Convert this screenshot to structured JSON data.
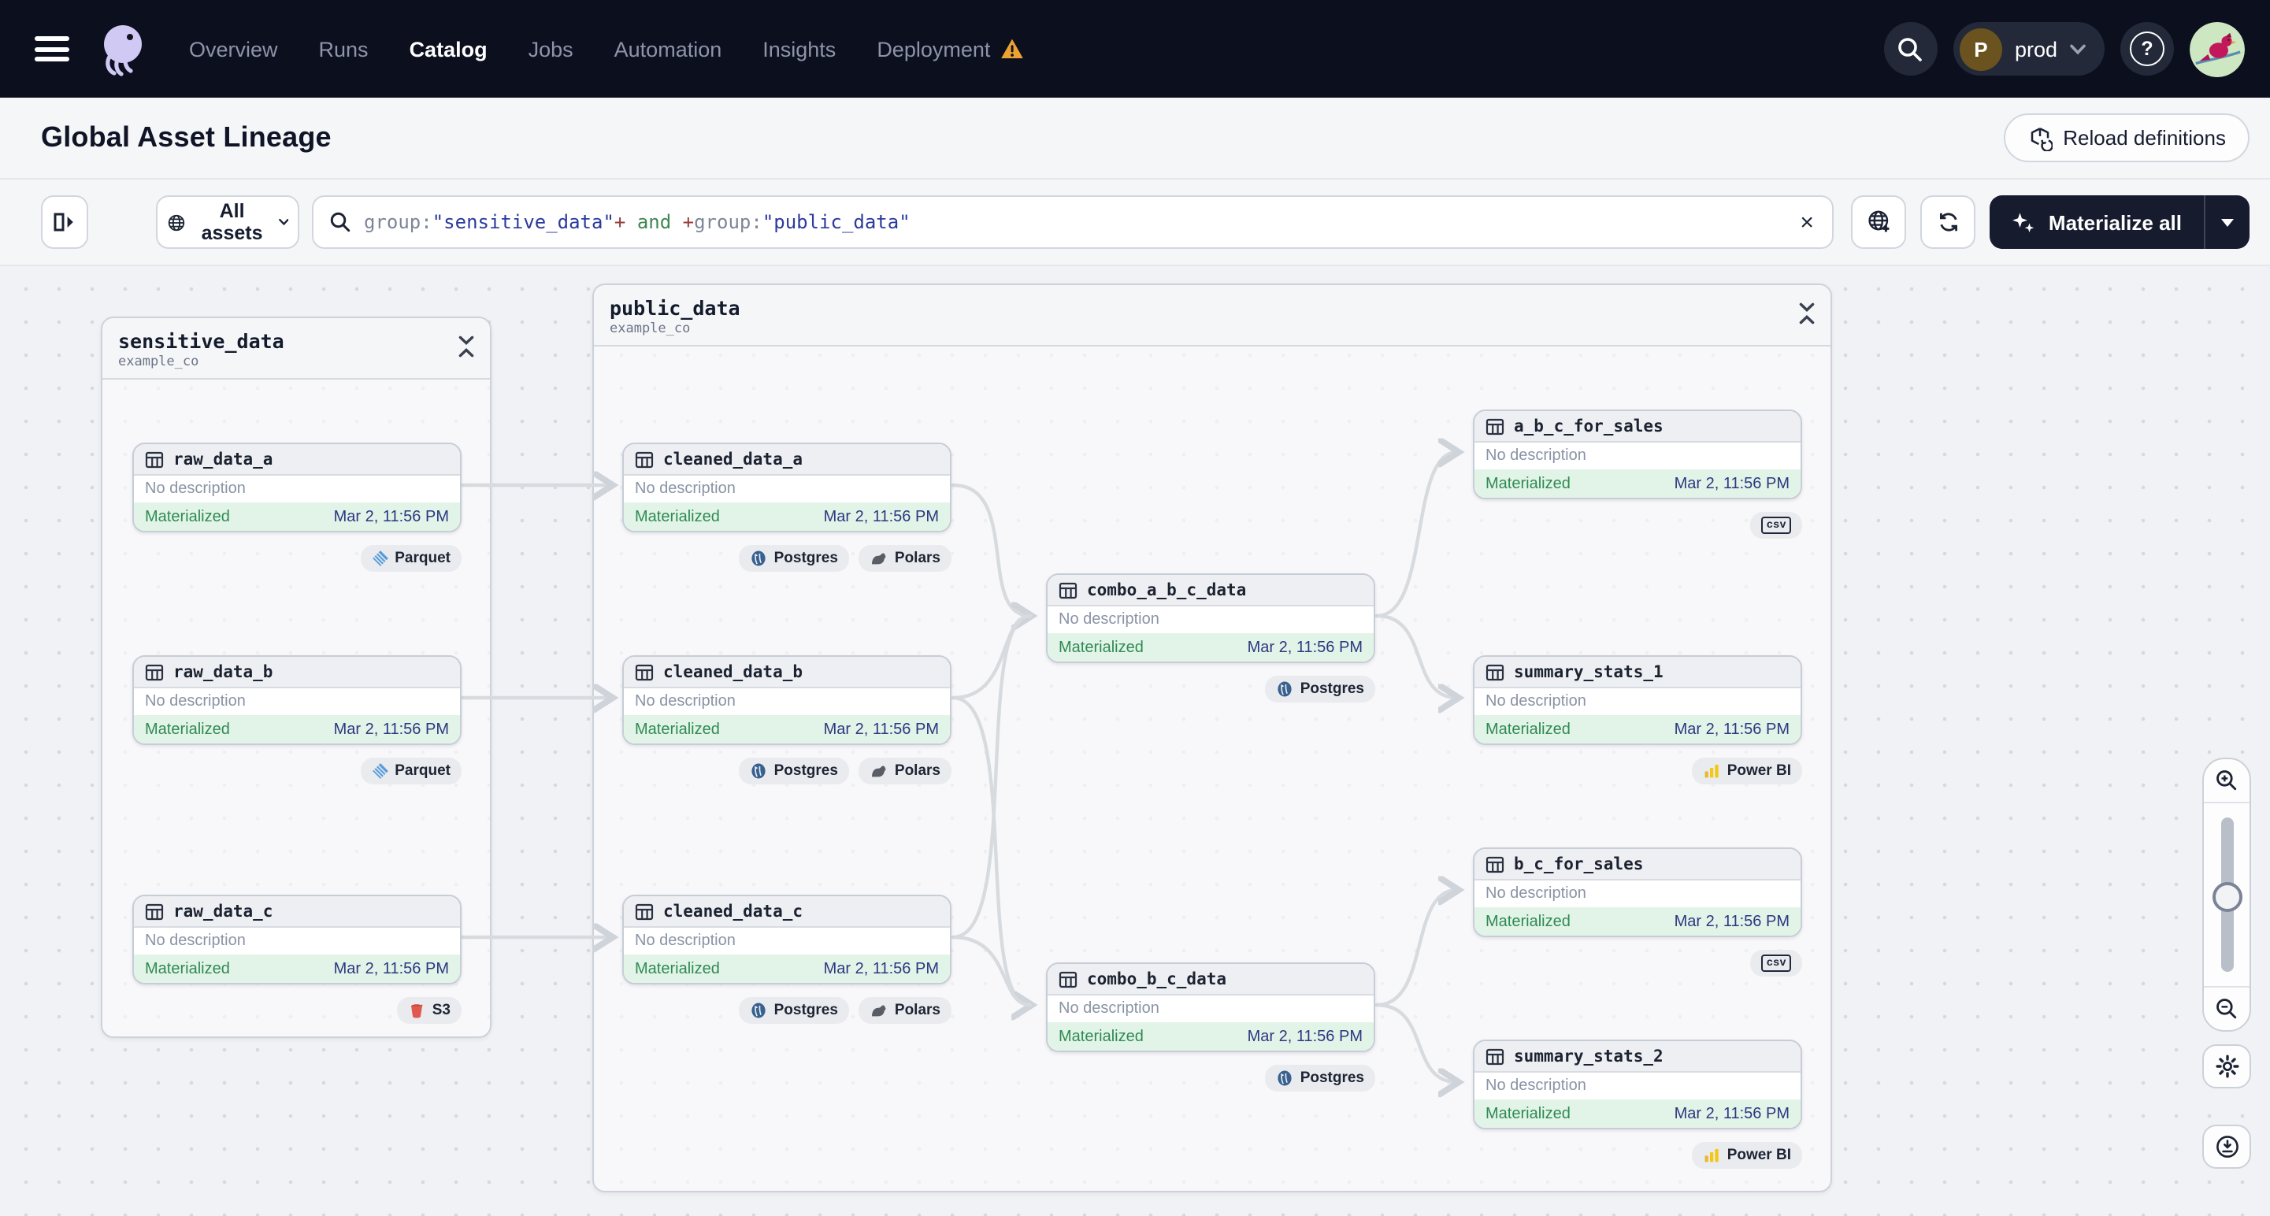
{
  "colors": {
    "nav_bg": "#0c0f1e",
    "accent_dark": "#161b2e",
    "materialized_green": "#2f8a52",
    "materialized_bg": "#e2f4e8",
    "timestamp_navy": "#2d3780",
    "warning_orange": "#eca233",
    "edge_gray": "#d7dade"
  },
  "topnav": {
    "menu_items": [
      {
        "label": "Overview",
        "active": false
      },
      {
        "label": "Runs",
        "active": false
      },
      {
        "label": "Catalog",
        "active": true
      },
      {
        "label": "Jobs",
        "active": false
      },
      {
        "label": "Automation",
        "active": false
      },
      {
        "label": "Insights",
        "active": false
      },
      {
        "label": "Deployment",
        "active": false,
        "warning": true
      }
    ],
    "icons": [
      "menu-icon",
      "dagster-logo",
      "search-icon",
      "help-icon"
    ],
    "env": {
      "initial": "P",
      "label": "prod"
    }
  },
  "header": {
    "title": "Global Asset Lineage",
    "reload_label": "Reload definitions"
  },
  "toolbar": {
    "filter_label": "All assets",
    "materialize_label": "Materialize all",
    "clear_label": "×",
    "query_segments": [
      {
        "text": "group:",
        "color": "muted"
      },
      {
        "text": "\"sensitive_data\"",
        "color": "value"
      },
      {
        "text": "+",
        "color": "op"
      },
      {
        "text": " and ",
        "color": "key"
      },
      {
        "text": "+",
        "color": "op"
      },
      {
        "text": "group:",
        "color": "muted"
      },
      {
        "text": "\"public_data\"",
        "color": "value"
      }
    ],
    "icons": [
      "panel-toggle-icon",
      "globe-icon",
      "globe-add-icon",
      "refresh-icon",
      "sparkles-icon"
    ]
  },
  "graph": {
    "groups": [
      {
        "name": "sensitive_data",
        "subtitle": "example_co"
      },
      {
        "name": "public_data",
        "subtitle": "example_co"
      }
    ],
    "nodes": [
      {
        "name": "raw_data_a",
        "description": "No description",
        "status": "Materialized",
        "timestamp": "Mar 2, 11:56 PM",
        "tags": [
          {
            "label": "Parquet",
            "icon": "parquet"
          }
        ]
      },
      {
        "name": "raw_data_b",
        "description": "No description",
        "status": "Materialized",
        "timestamp": "Mar 2, 11:56 PM",
        "tags": [
          {
            "label": "Parquet",
            "icon": "parquet"
          }
        ]
      },
      {
        "name": "raw_data_c",
        "description": "No description",
        "status": "Materialized",
        "timestamp": "Mar 2, 11:56 PM",
        "tags": [
          {
            "label": "S3",
            "icon": "s3"
          }
        ]
      },
      {
        "name": "cleaned_data_a",
        "description": "No description",
        "status": "Materialized",
        "timestamp": "Mar 2, 11:56 PM",
        "tags": [
          {
            "label": "Postgres",
            "icon": "postgres"
          },
          {
            "label": "Polars",
            "icon": "polars"
          }
        ]
      },
      {
        "name": "cleaned_data_b",
        "description": "No description",
        "status": "Materialized",
        "timestamp": "Mar 2, 11:56 PM",
        "tags": [
          {
            "label": "Postgres",
            "icon": "postgres"
          },
          {
            "label": "Polars",
            "icon": "polars"
          }
        ]
      },
      {
        "name": "cleaned_data_c",
        "description": "No description",
        "status": "Materialized",
        "timestamp": "Mar 2, 11:56 PM",
        "tags": [
          {
            "label": "Postgres",
            "icon": "postgres"
          },
          {
            "label": "Polars",
            "icon": "polars"
          }
        ]
      },
      {
        "name": "combo_a_b_c_data",
        "description": "No description",
        "status": "Materialized",
        "timestamp": "Mar 2, 11:56 PM",
        "tags": [
          {
            "label": "Postgres",
            "icon": "postgres"
          }
        ]
      },
      {
        "name": "combo_b_c_data",
        "description": "No description",
        "status": "Materialized",
        "timestamp": "Mar 2, 11:56 PM",
        "tags": [
          {
            "label": "Postgres",
            "icon": "postgres"
          }
        ]
      },
      {
        "name": "a_b_c_for_sales",
        "description": "No description",
        "status": "Materialized",
        "timestamp": "Mar 2, 11:56 PM",
        "tags": [
          {
            "label": "",
            "icon": "csv"
          }
        ]
      },
      {
        "name": "summary_stats_1",
        "description": "No description",
        "status": "Materialized",
        "timestamp": "Mar 2, 11:56 PM",
        "tags": [
          {
            "label": "Power BI",
            "icon": "powerbi"
          }
        ]
      },
      {
        "name": "b_c_for_sales",
        "description": "No description",
        "status": "Materialized",
        "timestamp": "Mar 2, 11:56 PM",
        "tags": [
          {
            "label": "",
            "icon": "csv"
          }
        ]
      },
      {
        "name": "summary_stats_2",
        "description": "No description",
        "status": "Materialized",
        "timestamp": "Mar 2, 11:56 PM",
        "tags": [
          {
            "label": "Power BI",
            "icon": "powerbi"
          }
        ]
      }
    ]
  },
  "lineage_controls": {
    "icons": [
      "zoom-in-icon",
      "zoom-slider",
      "zoom-out-icon",
      "settings-icon",
      "download-icon"
    ]
  }
}
